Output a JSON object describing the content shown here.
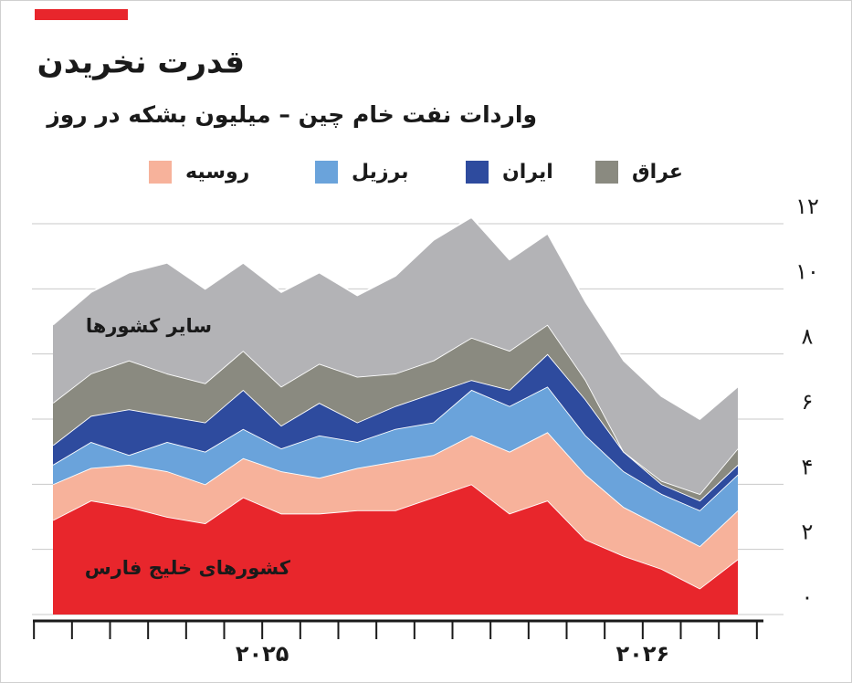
{
  "chart_data": {
    "type": "stacked_area",
    "title": "قدرت نخریدن",
    "subtitle": "واردات نفت خام چین – میلیون بشکه در روز",
    "categories": [
      null,
      null,
      null,
      null,
      null,
      "۲۰۲۵",
      null,
      null,
      null,
      null,
      null,
      null,
      null,
      null,
      null,
      "۲۰۲۶",
      null,
      null,
      null
    ],
    "series": [
      {
        "name": "کشورهای خلیج فارس",
        "color": "#e8262c",
        "in_legend": false,
        "values": [
          2.9,
          3.5,
          3.3,
          3.0,
          2.8,
          3.6,
          3.1,
          3.1,
          3.2,
          3.2,
          3.6,
          4.0,
          3.1,
          3.5,
          2.3,
          1.8,
          1.4,
          0.8,
          1.7
        ]
      },
      {
        "name": "روسیه",
        "color": "#f7b29b",
        "in_legend": true,
        "values": [
          1.1,
          1.0,
          1.3,
          1.4,
          1.2,
          1.2,
          1.3,
          1.1,
          1.3,
          1.5,
          1.3,
          1.5,
          1.9,
          2.1,
          2.0,
          1.5,
          1.3,
          1.3,
          1.5
        ]
      },
      {
        "name": "برزیل",
        "color": "#6aa3db",
        "in_legend": true,
        "values": [
          0.6,
          0.8,
          0.3,
          0.9,
          1.0,
          0.9,
          0.7,
          1.3,
          0.8,
          1.0,
          1.0,
          1.4,
          1.4,
          1.4,
          1.2,
          1.1,
          1.0,
          1.1,
          1.1
        ]
      },
      {
        "name": "ایران",
        "color": "#2e4b9e",
        "in_legend": true,
        "values": [
          0.6,
          0.8,
          1.4,
          0.8,
          0.9,
          1.2,
          0.7,
          1.0,
          0.6,
          0.7,
          0.9,
          0.3,
          0.5,
          1.0,
          1.1,
          0.6,
          0.3,
          0.3,
          0.3
        ]
      },
      {
        "name": "عراق",
        "color": "#8a8a80",
        "in_legend": true,
        "values": [
          1.3,
          1.3,
          1.5,
          1.3,
          1.2,
          1.2,
          1.2,
          1.2,
          1.4,
          1.0,
          1.0,
          1.3,
          1.2,
          0.9,
          0.6,
          0.0,
          0.1,
          0.2,
          0.5
        ]
      },
      {
        "name": "سایر کشورها",
        "color": "#b3b3b6",
        "in_legend": false,
        "values": [
          2.4,
          2.5,
          2.7,
          3.4,
          2.9,
          2.7,
          2.9,
          2.8,
          2.5,
          3.0,
          3.7,
          3.7,
          2.8,
          2.8,
          2.4,
          2.8,
          2.6,
          2.3,
          1.9
        ]
      }
    ],
    "ylim": [
      0,
      12
    ],
    "yticks": [
      {
        "value": 0,
        "label": "۰"
      },
      {
        "value": 2,
        "label": "۲"
      },
      {
        "value": 4,
        "label": "۴"
      },
      {
        "value": 6,
        "label": "۶"
      },
      {
        "value": 8,
        "label": "۸"
      },
      {
        "value": 10,
        "label": "۱۰"
      },
      {
        "value": 12,
        "label": "۱۲"
      }
    ],
    "grid": true
  }
}
